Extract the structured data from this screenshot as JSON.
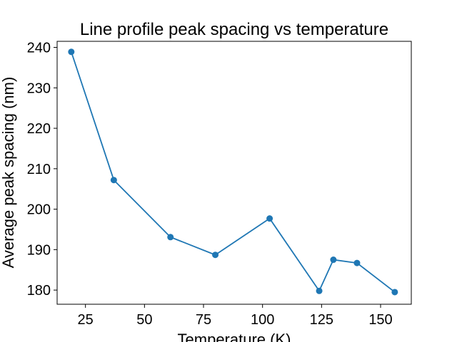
{
  "chart_data": {
    "type": "line",
    "title": "Line profile peak spacing vs temperature",
    "xlabel": "Temperature (K)",
    "ylabel": "Average peak spacing (nm)",
    "xlim": [
      13,
      163
    ],
    "ylim": [
      176.5,
      241.5
    ],
    "xticks": [
      25,
      50,
      75,
      100,
      125,
      150
    ],
    "yticks": [
      180,
      190,
      200,
      210,
      220,
      230,
      240
    ],
    "grid": false,
    "series": [
      {
        "color": "#1f77b4",
        "marker": "circle",
        "x": [
          19,
          37,
          61,
          80,
          103,
          124,
          130,
          140,
          156
        ],
        "y": [
          238.9,
          207.2,
          193.1,
          188.7,
          197.7,
          179.8,
          187.5,
          186.7,
          179.5
        ]
      }
    ]
  }
}
